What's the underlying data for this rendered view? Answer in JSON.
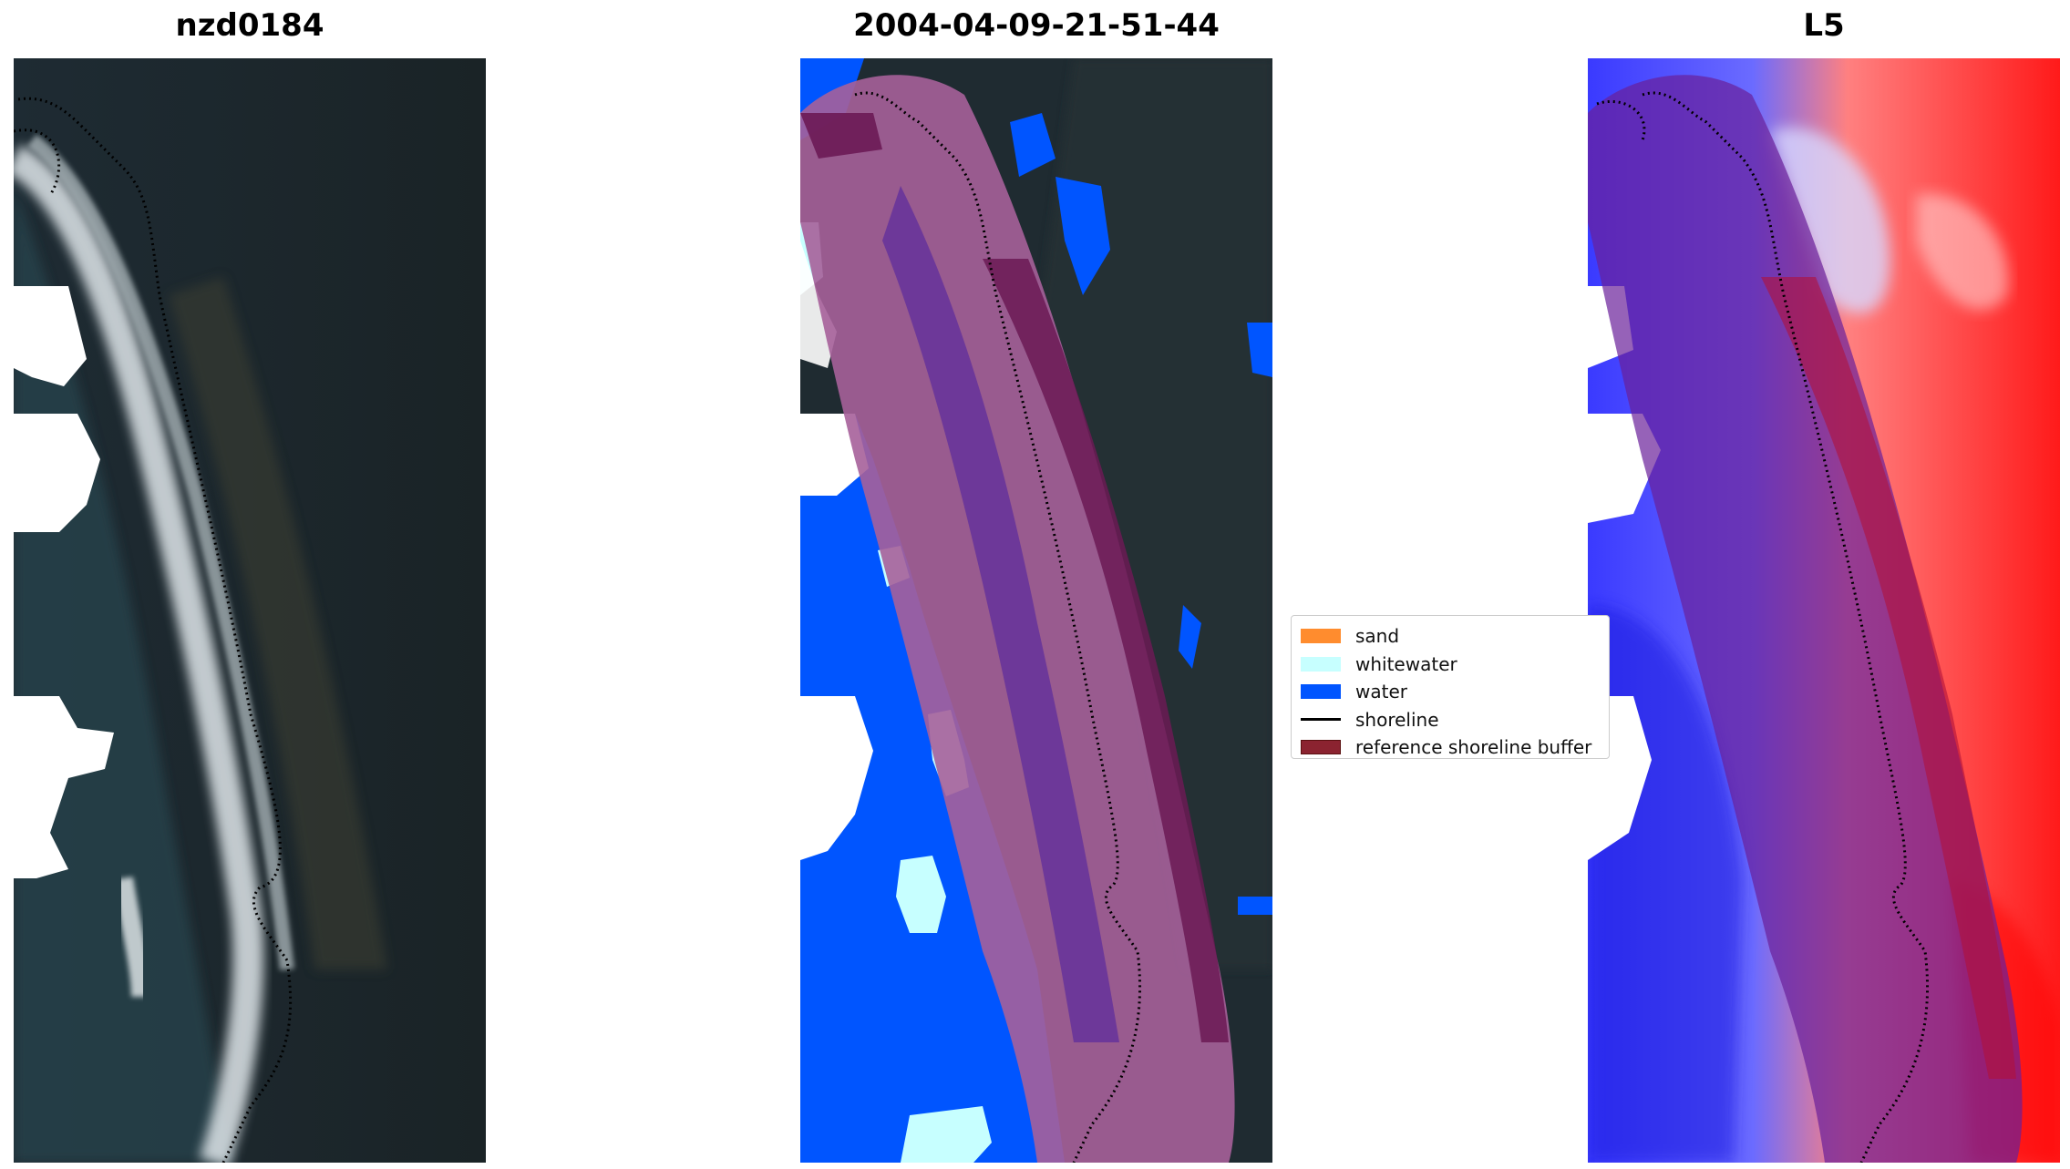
{
  "panels": [
    {
      "title": "nzd0184",
      "kind": "rgb"
    },
    {
      "title": "2004-04-09-21-51-44",
      "kind": "classification"
    },
    {
      "title": "L5",
      "kind": "index"
    }
  ],
  "legend": {
    "items": [
      {
        "label": "sand",
        "type": "patch",
        "color": "#ff8c2e"
      },
      {
        "label": "whitewater",
        "type": "patch",
        "color": "#c7ffff"
      },
      {
        "label": "water",
        "type": "patch",
        "color": "#0055ff"
      },
      {
        "label": "shoreline",
        "type": "line",
        "color": "#000000"
      },
      {
        "label": "reference shoreline buffer",
        "type": "patch",
        "color": "#8b2330"
      }
    ]
  },
  "colors": {
    "background_dark": "#1f2a30",
    "whitewater": "#c7ffff",
    "water": "#0055ff",
    "buffer": "#8b2330",
    "buffer_overlay": "#7a1a6f",
    "index_low": "#2a2af0",
    "index_high": "#ff1a1a"
  }
}
